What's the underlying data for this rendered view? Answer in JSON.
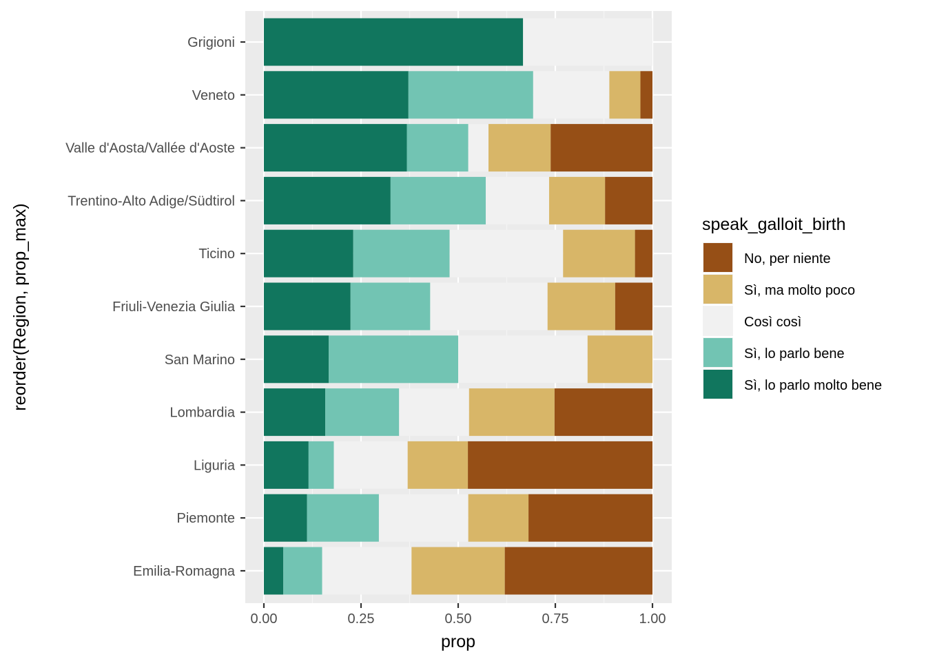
{
  "chart_data": {
    "type": "bar",
    "orientation": "horizontal",
    "stacked": true,
    "title": "",
    "xlabel": "prop",
    "ylabel": "reorder(Region, prop_max)",
    "xlim": [
      0,
      1
    ],
    "x_ticks": [
      0,
      0.25,
      0.5,
      0.75,
      1
    ],
    "x_tick_labels": [
      "0.00",
      "0.25",
      "0.50",
      "0.75",
      "1.00"
    ],
    "grid": true,
    "legend": {
      "title": "speak_galloit_birth",
      "position": "right",
      "entries": [
        "No, per niente",
        "Sì, ma molto poco",
        "Così così",
        "Sì, lo parlo bene",
        "Sì, lo parlo molto bene"
      ]
    },
    "categories": [
      "Grigioni",
      "Veneto",
      "Valle d'Aosta/Vallée d'Aoste",
      "Trentino-Alto Adige/Südtirol",
      "Ticino",
      "Friuli-Venezia Giulia",
      "San Marino",
      "Lombardia",
      "Liguria",
      "Piemonte",
      "Emilia-Romagna"
    ],
    "series": [
      {
        "name": "Sì, lo parlo molto bene",
        "color": "#11765E",
        "values": [
          0.667,
          0.372,
          0.368,
          0.326,
          0.23,
          0.223,
          0.167,
          0.158,
          0.115,
          0.111,
          0.05
        ]
      },
      {
        "name": "Sì, lo parlo bene",
        "color": "#72C4B3",
        "values": [
          0.0,
          0.321,
          0.158,
          0.245,
          0.248,
          0.205,
          0.333,
          0.19,
          0.065,
          0.185,
          0.1
        ]
      },
      {
        "name": "Così così",
        "color": "#F1F1F1",
        "values": [
          0.333,
          0.196,
          0.052,
          0.163,
          0.292,
          0.302,
          0.333,
          0.18,
          0.19,
          0.23,
          0.23
        ]
      },
      {
        "name": "Sì, ma molto poco",
        "color": "#D8B668",
        "values": [
          0.0,
          0.08,
          0.16,
          0.144,
          0.185,
          0.174,
          0.167,
          0.22,
          0.155,
          0.155,
          0.24
        ]
      },
      {
        "name": "No, per niente",
        "color": "#964F16",
        "values": [
          0.0,
          0.031,
          0.262,
          0.122,
          0.045,
          0.096,
          0.0,
          0.252,
          0.475,
          0.319,
          0.38
        ]
      }
    ],
    "colors": {
      "panel_background": "#EBEBEB",
      "grid_major": "#FFFFFF",
      "grid_minor": "#F5F5F5"
    }
  }
}
